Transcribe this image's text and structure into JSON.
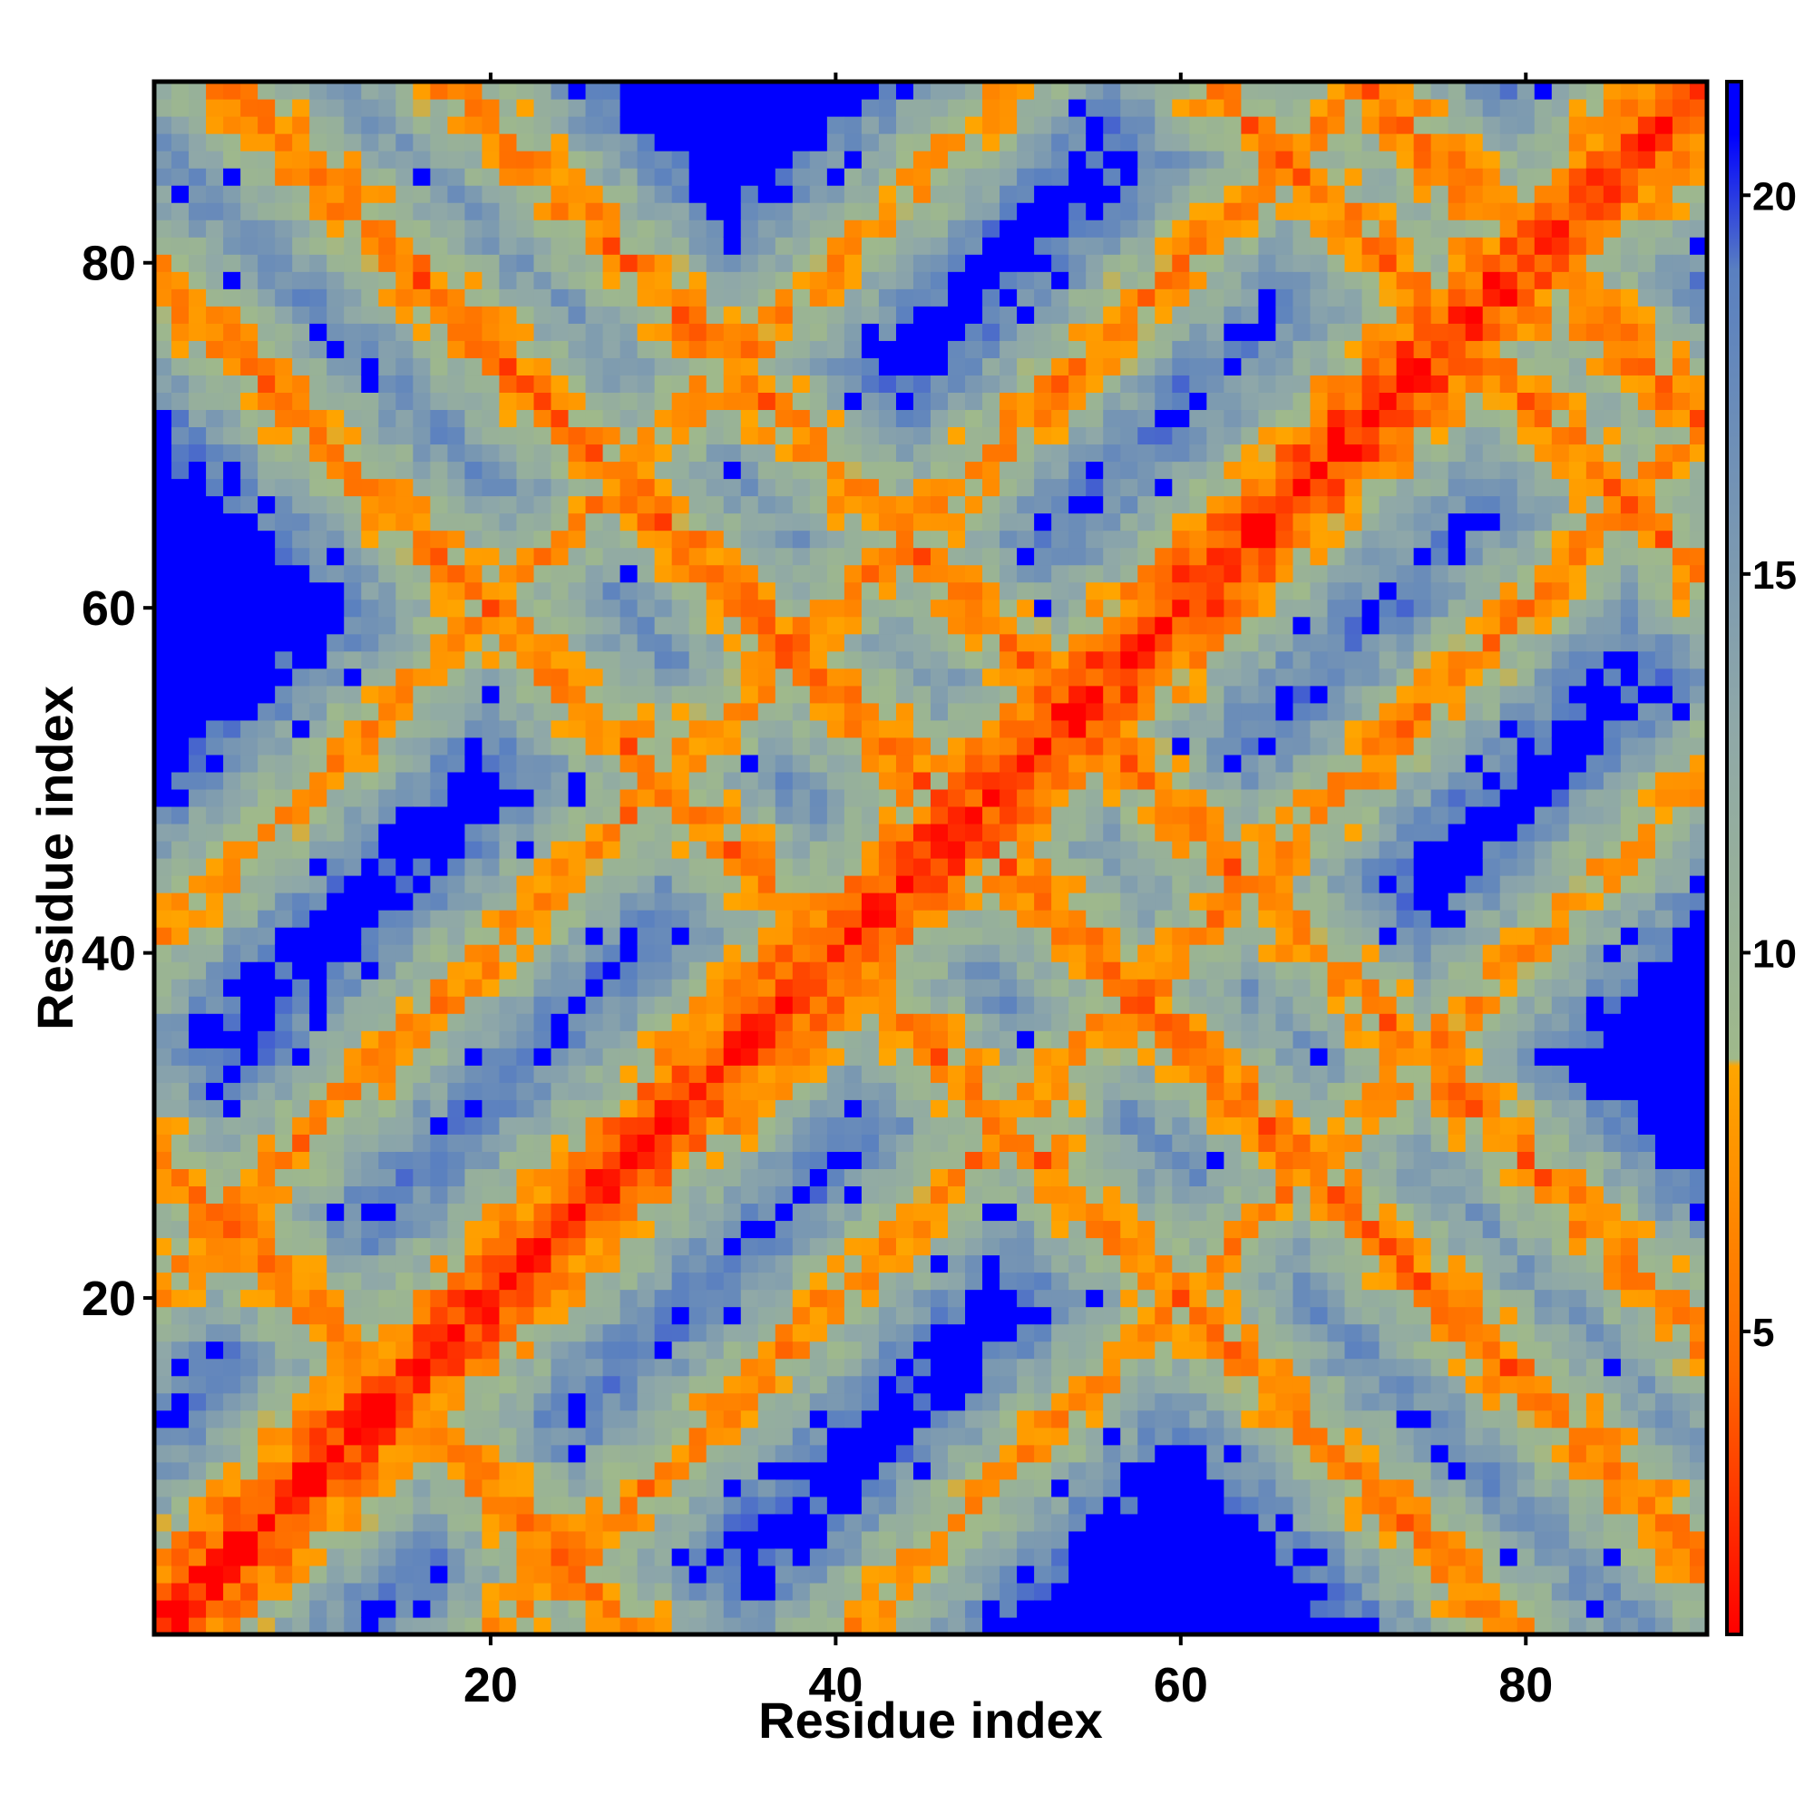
{
  "chart_data": {
    "type": "heatmap",
    "title": "",
    "xlabel": "Residue index",
    "ylabel": "Residue index",
    "n_residues": 90,
    "xlim": [
      0.5,
      90.5
    ],
    "ylim": [
      0.5,
      90.5
    ],
    "x_ticks": [
      20,
      40,
      60,
      80
    ],
    "y_ticks": [
      20,
      40,
      60,
      80
    ],
    "grid": false,
    "colorbar": {
      "range": [
        1,
        21.5
      ],
      "ticks": [
        5,
        10,
        15,
        20
      ],
      "stops": [
        {
          "value": 1,
          "color": "#ff0000"
        },
        {
          "value": 4.5,
          "color": "#ff6a00"
        },
        {
          "value": 8.5,
          "color": "#ffa500"
        },
        {
          "value": 8.6,
          "color": "#9fb98b"
        },
        {
          "value": 13,
          "color": "#8fa8a8"
        },
        {
          "value": 19,
          "color": "#5a80c0"
        },
        {
          "value": 20.8,
          "color": "#0000ff"
        }
      ]
    },
    "cutoff_value": 21,
    "features": {
      "diagonal_distance": 1.5,
      "antiparallel_contacts": [
        {
          "sum": 29,
          "min_distance": 5.5
        },
        {
          "sum": 80,
          "min_distance": 5.5
        },
        {
          "sum": 95,
          "min_distance": 5.0
        },
        {
          "sum": 108,
          "min_distance": 5.5
        },
        {
          "sum": 152,
          "min_distance": 5.5
        },
        {
          "sum": 161,
          "min_distance": 5.0
        }
      ],
      "parallel_contacts": [
        {
          "diff": 20,
          "min_distance": 6.0
        },
        {
          "diff": 40,
          "min_distance": 6.5
        }
      ]
    }
  }
}
